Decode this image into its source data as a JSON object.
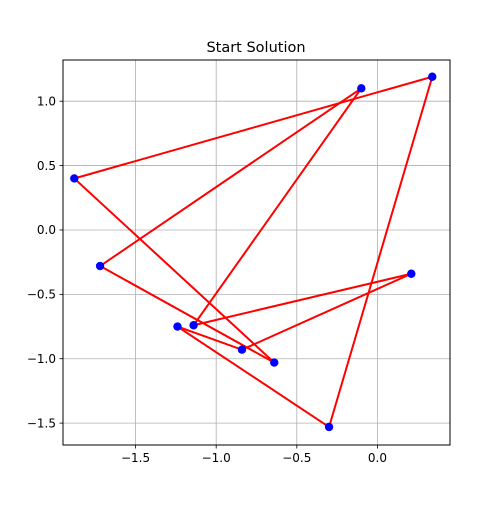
{
  "chart_data": {
    "type": "line",
    "title": "Start Solution",
    "xlabel": "",
    "ylabel": "",
    "xlim": [
      -1.95,
      0.45
    ],
    "ylim": [
      -1.67,
      1.32
    ],
    "grid": true,
    "x_ticks": [
      -1.5,
      -1.0,
      -0.5,
      0.0
    ],
    "x_tick_labels": [
      "−1.5",
      "−1.0",
      "−0.5",
      "0.0"
    ],
    "y_ticks": [
      1.0,
      0.5,
      0.0,
      -0.5,
      -1.0,
      -1.5
    ],
    "y_tick_labels": [
      "1.0",
      "0.5",
      "0.0",
      "−0.5",
      "−1.0",
      "−1.5"
    ],
    "point_color": "#0000ff",
    "route_color": "#ff0000",
    "points": [
      {
        "x": 0.34,
        "y": 1.19
      },
      {
        "x": -0.1,
        "y": 1.1
      },
      {
        "x": -1.88,
        "y": 0.4
      },
      {
        "x": -1.72,
        "y": -0.28
      },
      {
        "x": 0.21,
        "y": -0.34
      },
      {
        "x": -1.14,
        "y": -0.74
      },
      {
        "x": -1.24,
        "y": -0.75
      },
      {
        "x": -0.84,
        "y": -0.93
      },
      {
        "x": -0.64,
        "y": -1.03
      },
      {
        "x": -0.3,
        "y": -1.53
      }
    ],
    "route": [
      {
        "x": 0.34,
        "y": 1.19
      },
      {
        "x": -1.88,
        "y": 0.4
      },
      {
        "x": -0.64,
        "y": -1.03
      },
      {
        "x": -1.72,
        "y": -0.28
      },
      {
        "x": -0.1,
        "y": 1.1
      },
      {
        "x": -1.14,
        "y": -0.74
      },
      {
        "x": 0.21,
        "y": -0.34
      },
      {
        "x": -0.84,
        "y": -0.93
      },
      {
        "x": -1.24,
        "y": -0.75
      },
      {
        "x": -0.3,
        "y": -1.53
      },
      {
        "x": 0.34,
        "y": 1.19
      }
    ]
  }
}
